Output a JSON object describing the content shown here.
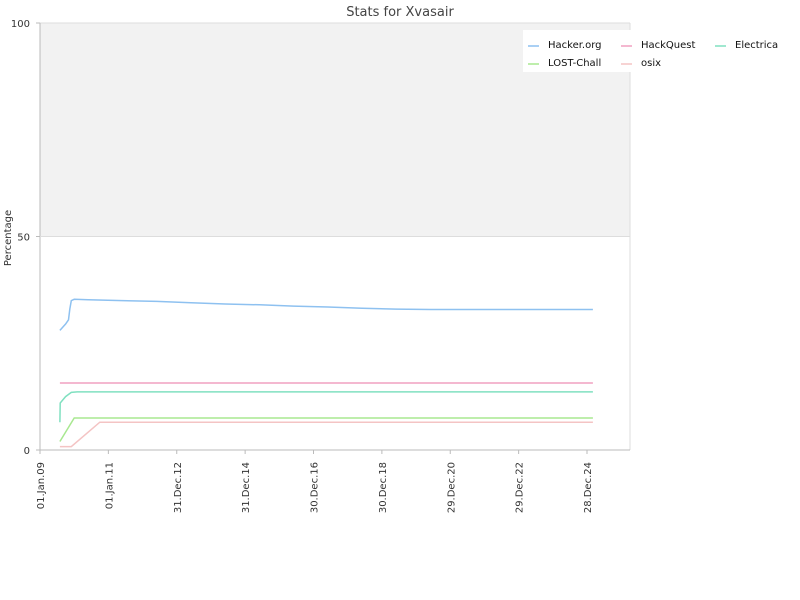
{
  "chart_data": {
    "type": "line",
    "title": "Stats for Xvasair",
    "ylabel": "Percentage",
    "xlabel": "",
    "ylim": [
      0,
      100
    ],
    "yticks": [
      "0",
      "50",
      "100"
    ],
    "xlim": [
      "2009-01-01",
      "2026-04-01"
    ],
    "xticks": [
      {
        "label": "01.Jan.09",
        "date": "2009-01-01"
      },
      {
        "label": "01.Jan.11",
        "date": "2011-01-01"
      },
      {
        "label": "31.Dec.12",
        "date": "2012-12-31"
      },
      {
        "label": "31.Dec.14",
        "date": "2014-12-31"
      },
      {
        "label": "30.Dec.16",
        "date": "2016-12-30"
      },
      {
        "label": "30.Dec.18",
        "date": "2018-12-30"
      },
      {
        "label": "29.Dec.20",
        "date": "2020-12-29"
      },
      {
        "label": "29.Dec.22",
        "date": "2022-12-29"
      },
      {
        "label": "28.Dec.24",
        "date": "2024-12-28"
      }
    ],
    "legend_position": "top-right",
    "grid": false,
    "upper_band_color": "#f2f2f2",
    "series": [
      {
        "name": "Hacker.org",
        "color": "#8ec1f0",
        "points": [
          [
            "2009-08-01",
            28
          ],
          [
            "2009-10-01",
            29.5
          ],
          [
            "2009-11-01",
            30.5
          ],
          [
            "2009-11-15",
            33
          ],
          [
            "2009-12-01",
            35
          ],
          [
            "2010-01-01",
            35.3
          ],
          [
            "2010-06-01",
            35.2
          ],
          [
            "2011-06-01",
            35.0
          ],
          [
            "2012-06-01",
            34.8
          ],
          [
            "2013-06-01",
            34.5
          ],
          [
            "2014-06-01",
            34.2
          ],
          [
            "2015-06-01",
            34.0
          ],
          [
            "2016-06-01",
            33.7
          ],
          [
            "2017-06-01",
            33.5
          ],
          [
            "2018-06-01",
            33.2
          ],
          [
            "2019-06-01",
            33.0
          ],
          [
            "2020-06-01",
            32.9
          ],
          [
            "2022-01-01",
            32.9
          ],
          [
            "2025-03-01",
            32.9
          ]
        ]
      },
      {
        "name": "HackQuest",
        "color": "#f0a0c0",
        "points": [
          [
            "2009-08-01",
            15.7
          ],
          [
            "2025-03-01",
            15.7
          ]
        ]
      },
      {
        "name": "Electrica",
        "color": "#80e0c0",
        "points": [
          [
            "2009-08-01",
            6.5
          ],
          [
            "2009-08-05",
            11
          ],
          [
            "2009-10-01",
            12.5
          ],
          [
            "2009-12-01",
            13.5
          ],
          [
            "2010-02-01",
            13.6
          ],
          [
            "2025-03-01",
            13.6
          ]
        ]
      },
      {
        "name": "LOST-Chall",
        "color": "#a8e890",
        "points": [
          [
            "2009-08-01",
            2
          ],
          [
            "2010-01-01",
            7.5
          ],
          [
            "2025-03-01",
            7.5
          ]
        ]
      },
      {
        "name": "osix",
        "color": "#f4c4c4",
        "points": [
          [
            "2009-08-01",
            0.8
          ],
          [
            "2009-12-01",
            0.8
          ],
          [
            "2010-10-01",
            6.5
          ],
          [
            "2025-03-01",
            6.5
          ]
        ]
      }
    ]
  }
}
